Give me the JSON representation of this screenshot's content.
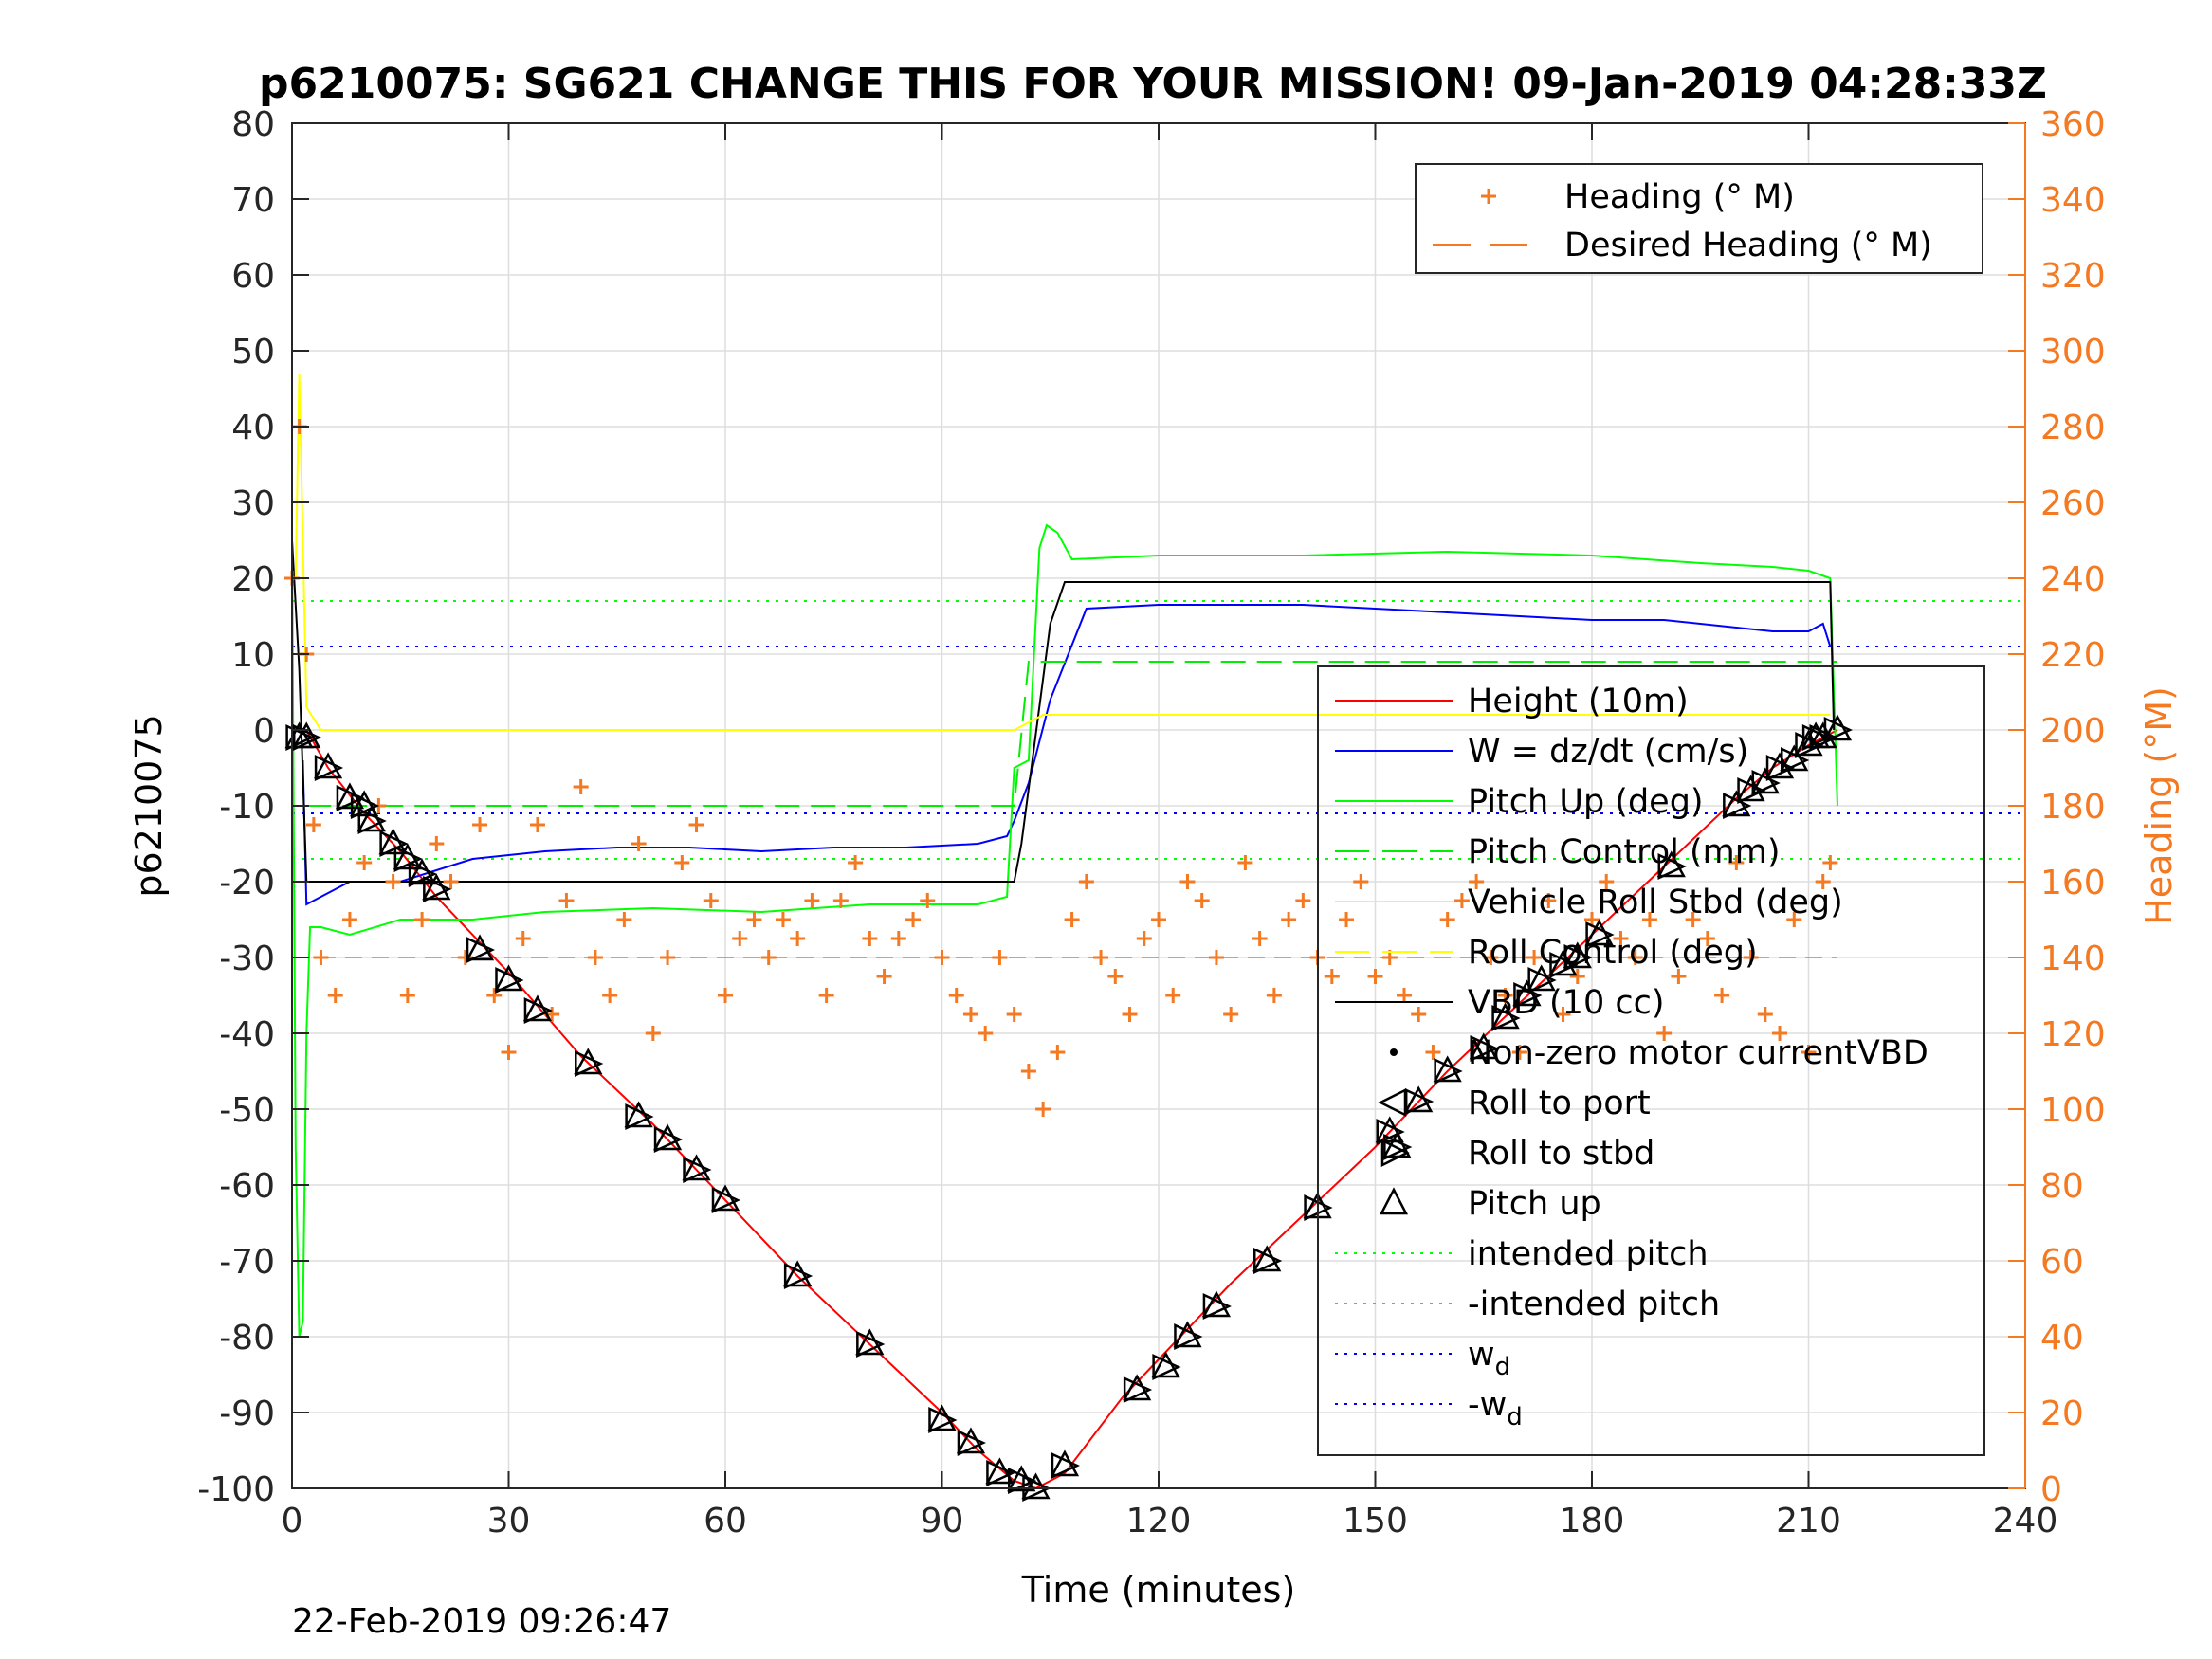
{
  "chart_data": {
    "type": "line",
    "title": "p6210075: SG621 CHANGE THIS FOR YOUR MISSION! 09-Jan-2019 04:28:33Z",
    "xlabel": "Time (minutes)",
    "ylabel_left": "p6210075",
    "ylabel_right": "Heading (°M)",
    "xlim": [
      0,
      240
    ],
    "ylim_left": [
      -100,
      80
    ],
    "ylim_right": [
      0,
      360
    ],
    "xticks": [
      0,
      30,
      60,
      90,
      120,
      150,
      180,
      210,
      240
    ],
    "yticks_left": [
      -100,
      -90,
      -80,
      -70,
      -60,
      -50,
      -40,
      -30,
      -20,
      -10,
      0,
      10,
      20,
      30,
      40,
      50,
      60,
      70,
      80
    ],
    "yticks_right": [
      0,
      20,
      40,
      60,
      80,
      100,
      120,
      140,
      160,
      180,
      200,
      220,
      240,
      260,
      280,
      300,
      320,
      340,
      360
    ],
    "grid": true,
    "legend_right_axis": {
      "placement": "top-right",
      "entries": [
        {
          "label": "Heading (° M)",
          "marker": "plus",
          "color": "#f47920"
        },
        {
          "label": "Desired Heading (° M)",
          "marker": "dash",
          "color": "#f47920"
        }
      ]
    },
    "legend_left_axis": {
      "placement": "right",
      "entries": [
        {
          "label": "Height (10m)",
          "marker": "line",
          "color": "#ff0000"
        },
        {
          "label": "W = dz/dt (cm/s)",
          "marker": "line",
          "color": "#0000ff"
        },
        {
          "label": "Pitch Up (deg)",
          "marker": "line",
          "color": "#00ff00"
        },
        {
          "label": "Pitch Control (mm)",
          "marker": "dash",
          "color": "#00ee00"
        },
        {
          "label": "Vehicle Roll Stbd (deg)",
          "marker": "line",
          "color": "#ffff00"
        },
        {
          "label": "Roll Control (deg)",
          "marker": "dash",
          "color": "#ffff00"
        },
        {
          "label": "VBD (10 cc)",
          "marker": "line",
          "color": "#000000"
        },
        {
          "label": "Non-zero motor currentVBD",
          "marker": "dot",
          "color": "#000000"
        },
        {
          "label": "Roll to port",
          "marker": "tri-left",
          "color": "#000000"
        },
        {
          "label": "Roll to stbd",
          "marker": "tri-right",
          "color": "#000000"
        },
        {
          "label": "Pitch up",
          "marker": "tri-up",
          "color": "#000000"
        },
        {
          "label": "intended pitch",
          "marker": "dot-line",
          "color": "#00ff00"
        },
        {
          "label": "-intended pitch",
          "marker": "dot-line",
          "color": "#00ff00"
        },
        {
          "label": "w",
          "sub": "d",
          "marker": "dot-line",
          "color": "#0000ff"
        },
        {
          "label": "-w",
          "sub": "d",
          "marker": "dot-line",
          "color": "#0000ff"
        }
      ]
    },
    "reference_lines": {
      "intended_pitch": 17,
      "neg_intended_pitch": -17,
      "w_d": 11,
      "neg_w_d": -11,
      "desired_heading": 140
    },
    "series": [
      {
        "name": "Height (10m)",
        "axis": "left",
        "color": "#ff0000",
        "x": [
          0,
          2,
          5,
          10,
          15,
          20,
          30,
          40,
          50,
          60,
          70,
          80,
          90,
          95,
          100,
          103,
          107,
          115,
          120,
          130,
          140,
          150,
          160,
          170,
          180,
          190,
          200,
          205,
          210,
          214
        ],
        "y": [
          0,
          0,
          -5,
          -11,
          -16,
          -22,
          -32,
          -43,
          -52,
          -62,
          -72,
          -81,
          -90,
          -95,
          -99,
          -100,
          -98,
          -88,
          -83,
          -73,
          -64,
          -55,
          -45,
          -36,
          -27,
          -18,
          -9,
          -5,
          -2,
          0
        ]
      },
      {
        "name": "W = dz/dt (cm/s)",
        "axis": "left",
        "color": "#0000ff",
        "x": [
          1.5,
          2,
          4,
          8,
          15,
          25,
          35,
          45,
          55,
          65,
          75,
          85,
          95,
          99,
          100,
          102,
          105,
          110,
          120,
          130,
          140,
          150,
          160,
          170,
          180,
          190,
          200,
          205,
          210,
          212,
          213
        ],
        "y": [
          -4,
          -23,
          -22,
          -20,
          -20,
          -17,
          -16,
          -15.5,
          -15.5,
          -16,
          -15.5,
          -15.5,
          -15,
          -14,
          -12,
          -7,
          4,
          16,
          16.5,
          16.5,
          16.5,
          16,
          15.5,
          15,
          14.5,
          14.5,
          13.5,
          13,
          13,
          14,
          11
        ]
      },
      {
        "name": "Pitch Up (deg)",
        "axis": "left",
        "color": "#00ff00",
        "x": [
          0,
          0.5,
          1,
          1.5,
          2,
          2.5,
          4,
          8,
          15,
          25,
          35,
          50,
          65,
          80,
          95,
          99,
          100,
          102,
          103.5,
          104.5,
          106,
          108,
          120,
          140,
          160,
          180,
          195,
          205,
          210,
          213,
          214
        ],
        "y": [
          25,
          -55,
          -80,
          -78,
          -40,
          -26,
          -26,
          -27,
          -25,
          -25,
          -24,
          -23.5,
          -24,
          -23,
          -23,
          -22,
          -5,
          -4,
          24,
          27,
          26,
          22.5,
          23,
          23,
          23.5,
          23,
          22,
          21.5,
          21,
          20,
          -10
        ]
      },
      {
        "name": "VBD (10 cc)",
        "axis": "left",
        "color": "#000000",
        "x": [
          0,
          1,
          2,
          5,
          20,
          60,
          100,
          101,
          105,
          107,
          140,
          180,
          213,
          213.5
        ],
        "y": [
          25,
          8,
          -20,
          -20,
          -20,
          -20,
          -20,
          -15,
          14,
          19.5,
          19.5,
          19.5,
          19.5,
          0
        ]
      },
      {
        "name": "Pitch Control (mm)",
        "axis": "left",
        "color": "#00ee00",
        "x": [
          2,
          100,
          102,
          214
        ],
        "y": [
          -10,
          -10,
          9,
          9
        ]
      },
      {
        "name": "Vehicle Roll Stbd (deg)",
        "axis": "left",
        "color": "#ffff00",
        "x": [
          0.5,
          1,
          2,
          4,
          10,
          20,
          40,
          60,
          80,
          98,
          100,
          104,
          120,
          150,
          180,
          200,
          213
        ],
        "y": [
          20,
          47,
          3,
          0,
          0,
          0,
          0,
          0,
          0,
          0,
          0,
          2,
          2,
          2,
          2,
          2,
          2
        ]
      },
      {
        "name": "Heading (° M)",
        "axis": "right",
        "color": "#f47920",
        "x": [
          0,
          1,
          2,
          3,
          4,
          6,
          8,
          10,
          12,
          14,
          16,
          18,
          20,
          22,
          24,
          26,
          28,
          30,
          32,
          34,
          36,
          38,
          40,
          42,
          44,
          46,
          48,
          50,
          52,
          54,
          56,
          58,
          60,
          62,
          64,
          66,
          68,
          70,
          72,
          74,
          76,
          78,
          80,
          82,
          84,
          86,
          88,
          90,
          92,
          94,
          96,
          98,
          100,
          102,
          104,
          106,
          108,
          110,
          112,
          114,
          116,
          118,
          120,
          122,
          124,
          126,
          128,
          130,
          132,
          134,
          136,
          138,
          140,
          142,
          144,
          146,
          148,
          150,
          152,
          154,
          156,
          158,
          160,
          162,
          164,
          166,
          168,
          170,
          172,
          174,
          176,
          178,
          180,
          182,
          184,
          186,
          188,
          190,
          192,
          194,
          196,
          198,
          200,
          202,
          204,
          206,
          208,
          210,
          212,
          213
        ],
        "y": [
          240,
          280,
          220,
          175,
          140,
          130,
          150,
          165,
          180,
          160,
          130,
          150,
          170,
          160,
          140,
          175,
          130,
          115,
          145,
          175,
          125,
          155,
          185,
          140,
          130,
          150,
          170,
          120,
          140,
          165,
          175,
          155,
          130,
          145,
          150,
          140,
          150,
          145,
          155,
          130,
          155,
          165,
          145,
          135,
          145,
          150,
          155,
          140,
          130,
          125,
          120,
          140,
          125,
          110,
          100,
          115,
          150,
          160,
          140,
          135,
          125,
          145,
          150,
          130,
          160,
          155,
          140,
          125,
          165,
          145,
          130,
          150,
          155,
          140,
          135,
          150,
          160,
          135,
          140,
          130,
          125,
          115,
          150,
          155,
          160,
          140,
          130,
          115,
          140,
          155,
          125,
          135,
          150,
          160,
          145,
          140,
          150,
          120,
          135,
          150,
          145,
          130,
          165,
          140,
          125,
          120,
          150,
          115,
          160,
          165
        ]
      }
    ],
    "event_markers_height_axis": {
      "x": [
        1,
        2,
        5,
        8,
        10,
        11,
        14,
        16,
        18,
        20,
        26,
        30,
        34,
        41,
        48,
        52,
        56,
        60,
        70,
        80,
        90,
        94,
        98,
        101,
        103,
        107,
        117,
        121,
        124,
        128,
        135,
        142,
        152,
        153,
        156,
        160,
        165,
        168,
        171,
        173,
        176,
        178,
        181,
        191,
        200,
        202,
        204,
        206,
        208,
        210,
        211,
        212,
        214
      ],
      "y": [
        -1,
        -1,
        -5,
        -9,
        -10,
        -12,
        -15,
        -17,
        -19,
        -21,
        -29,
        -33,
        -37,
        -44,
        -51,
        -54,
        -58,
        -62,
        -72,
        -81,
        -91,
        -94,
        -98,
        -99,
        -100,
        -97,
        -87,
        -84,
        -80,
        -76,
        -70,
        -63,
        -53,
        -55,
        -49,
        -45,
        -42,
        -38,
        -35,
        -33,
        -31,
        -30,
        -27,
        -18,
        -10,
        -8,
        -7,
        -5,
        -4,
        -2,
        -1,
        -1,
        0
      ]
    }
  },
  "timestamp": "22-Feb-2019 09:26:47"
}
